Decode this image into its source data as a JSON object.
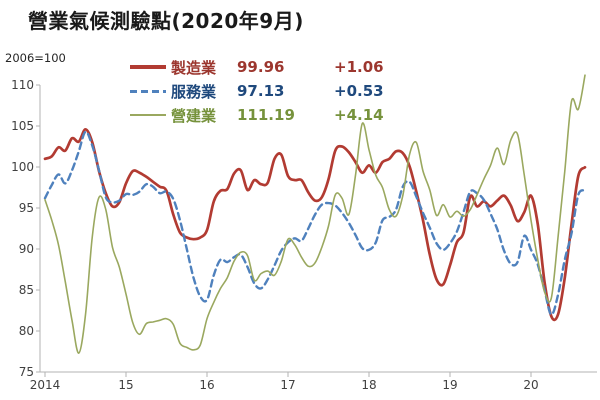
{
  "title": "營業氣候測驗點(2020年9月)",
  "axis_note": "2006=100",
  "legend": {
    "items": [
      {
        "label": "製造業",
        "value": "99.96",
        "change": "+1.06",
        "color": "#b23b32",
        "text_color": "#9c362e",
        "style": "solid",
        "thickness": 3.5
      },
      {
        "label": "服務業",
        "value": "97.13",
        "change": "+0.53",
        "color": "#4f81bd",
        "text_color": "#1f497d",
        "style": "dashed",
        "thickness": 3
      },
      {
        "label": "營建業",
        "value": "111.19",
        "change": "+4.14",
        "color": "#9aa85f",
        "text_color": "#76923c",
        "style": "solid",
        "thickness": 2
      }
    ]
  },
  "chart_data": {
    "type": "line",
    "title": "營業氣候測驗點(2020年9月)",
    "x_unit": "month",
    "x_range": "2014-01 to 2020-09",
    "x_tick_labels": [
      "2014",
      "15",
      "16",
      "17",
      "18",
      "19",
      "20"
    ],
    "x_tick_months": [
      0,
      12,
      24,
      36,
      48,
      60,
      72
    ],
    "ylim": [
      75,
      110
    ],
    "y_ticks": [
      75,
      80,
      85,
      90,
      95,
      100,
      105,
      110
    ],
    "grid": false,
    "legend_position": "top-left-inside",
    "axis_color": "#b3b3b3",
    "tick_label_color": "#404040",
    "series": [
      {
        "name": "製造業",
        "color": "#b23b32",
        "dash": "",
        "width": 2.7,
        "latest": 99.96,
        "monthly_change": 1.06,
        "values": [
          101.0,
          101.3,
          102.4,
          102.0,
          103.5,
          103.1,
          104.6,
          103.0,
          99.5,
          96.8,
          95.2,
          95.7,
          98.0,
          99.5,
          99.3,
          98.8,
          98.2,
          97.6,
          97.1,
          94.2,
          92.0,
          91.4,
          91.2,
          91.4,
          92.3,
          95.8,
          97.1,
          97.3,
          99.2,
          99.6,
          97.2,
          98.4,
          97.9,
          98.1,
          101.0,
          101.5,
          98.9,
          98.4,
          98.4,
          96.9,
          95.9,
          96.3,
          98.5,
          102.0,
          102.5,
          101.8,
          100.6,
          99.3,
          100.2,
          99.3,
          100.6,
          101.0,
          101.9,
          101.7,
          100.1,
          97.0,
          93.5,
          89.3,
          86.3,
          85.7,
          88.0,
          90.8,
          92.0,
          96.4,
          95.2,
          95.8,
          95.2,
          95.9,
          96.5,
          95.3,
          93.4,
          94.5,
          96.5,
          93.0,
          86.0,
          81.8,
          82.0,
          86.5,
          93.0,
          98.9,
          99.96
        ]
      },
      {
        "name": "服務業",
        "color": "#4f81bd",
        "dash": "6.5 4.5",
        "width": 2.4,
        "latest": 97.13,
        "monthly_change": 0.53,
        "values": [
          96.2,
          97.8,
          99.1,
          98.0,
          99.6,
          101.9,
          104.3,
          102.6,
          99.6,
          96.3,
          95.7,
          95.9,
          96.7,
          96.6,
          97.0,
          97.9,
          97.6,
          96.8,
          97.0,
          96.1,
          93.5,
          90.0,
          86.5,
          84.2,
          83.8,
          86.8,
          88.7,
          88.4,
          89.0,
          89.3,
          87.8,
          85.8,
          85.2,
          86.3,
          88.0,
          89.8,
          90.8,
          91.3,
          91.0,
          92.5,
          94.2,
          95.4,
          95.6,
          95.3,
          94.4,
          93.2,
          91.7,
          90.1,
          89.9,
          90.8,
          93.5,
          93.9,
          94.8,
          97.6,
          98.2,
          96.4,
          94.4,
          92.6,
          90.7,
          89.9,
          90.7,
          92.1,
          94.5,
          97.0,
          96.8,
          96.0,
          94.3,
          92.4,
          89.8,
          88.2,
          88.4,
          91.6,
          89.9,
          88.1,
          85.0,
          82.0,
          84.4,
          88.7,
          91.9,
          96.6,
          97.13
        ]
      },
      {
        "name": "營建業",
        "color": "#9aa85f",
        "dash": "",
        "width": 1.6,
        "latest": 111.19,
        "monthly_change": 4.14,
        "values": [
          96.0,
          93.5,
          90.5,
          86.0,
          81.3,
          77.3,
          82.0,
          91.5,
          96.3,
          94.8,
          90.2,
          87.8,
          84.5,
          81.0,
          79.6,
          80.9,
          81.1,
          81.3,
          81.5,
          80.8,
          78.5,
          78.0,
          77.7,
          78.3,
          81.5,
          83.5,
          85.2,
          86.5,
          88.5,
          89.6,
          89.2,
          86.2,
          87.0,
          87.3,
          86.8,
          88.5,
          91.2,
          90.5,
          89.0,
          87.9,
          88.3,
          90.2,
          92.8,
          96.6,
          96.2,
          94.2,
          99.0,
          105.3,
          102.1,
          99.0,
          97.5,
          94.8,
          94.0,
          96.5,
          101.5,
          103.0,
          99.5,
          97.2,
          94.1,
          95.4,
          93.9,
          94.6,
          94.0,
          94.8,
          96.6,
          98.5,
          100.2,
          102.3,
          100.3,
          103.3,
          104.0,
          99.0,
          93.5,
          88.7,
          84.8,
          84.0,
          91.4,
          99.5,
          108.0,
          107.05,
          111.19
        ]
      }
    ]
  }
}
